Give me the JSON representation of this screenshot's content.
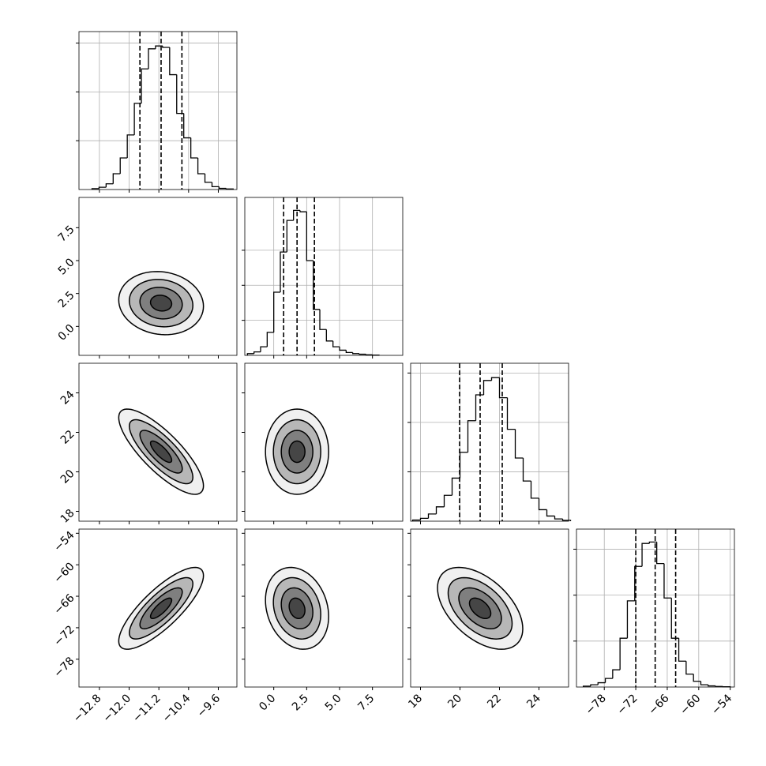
{
  "chart_data": {
    "type": "corner",
    "color": "#000000",
    "grid": true,
    "params": [
      {
        "lim": [
          -13.35,
          -9.1
        ],
        "ticks": [
          {
            "value": -12.8,
            "label": "−12.8"
          },
          {
            "value": -12.0,
            "label": "−12.0"
          },
          {
            "value": -11.2,
            "label": "−11.2"
          },
          {
            "value": -10.4,
            "label": "−10.4"
          },
          {
            "value": -9.6,
            "label": "−9.6"
          }
        ],
        "bins": [
          -13.0,
          -12.81,
          -12.62,
          -12.43,
          -12.24,
          -12.05,
          -11.86,
          -11.67,
          -11.48,
          -11.29,
          -11.1,
          -10.91,
          -10.72,
          -10.53,
          -10.34,
          -10.15,
          -9.96,
          -9.77,
          -9.58,
          -9.39,
          -9.2
        ],
        "counts": [
          3,
          8,
          20,
          55,
          110,
          190,
          300,
          420,
          490,
          500,
          495,
          400,
          265,
          180,
          110,
          55,
          25,
          10,
          4,
          2
        ],
        "hist_ylim": [
          0,
          550
        ],
        "hist_yticks": [
          170,
          340,
          510
        ],
        "quantiles": [
          -11.71,
          -11.14,
          -10.58
        ]
      },
      {
        "lim": [
          -2.2,
          9.8
        ],
        "ticks": [
          {
            "value": 0,
            "label": "0.0"
          },
          2.5,
          {
            "value": 5,
            "label": "5.0"
          },
          7.5
        ],
        "bins": [
          -2.0,
          -1.5,
          -1.0,
          -0.5,
          0.0,
          0.5,
          1.0,
          1.5,
          2.0,
          2.5,
          3.0,
          3.5,
          4.0,
          4.5,
          5.0,
          5.5,
          6.0,
          6.5,
          7.0,
          7.5,
          8.0
        ],
        "counts": [
          6,
          12,
          30,
          80,
          220,
          360,
          470,
          505,
          500,
          330,
          160,
          90,
          50,
          30,
          18,
          10,
          6,
          4,
          2,
          1
        ],
        "hist_ylim": [
          0,
          550
        ],
        "hist_yticks": [
          122,
          244,
          366
        ],
        "quantiles": [
          0.75,
          1.77,
          3.09
        ]
      },
      {
        "lim": [
          17.5,
          25.5
        ],
        "ticks": [
          18,
          20,
          22,
          24
        ],
        "bins": [
          17.6,
          18.0,
          18.4,
          18.8,
          19.2,
          19.6,
          20.0,
          20.4,
          20.8,
          21.2,
          21.6,
          22.0,
          22.4,
          22.8,
          23.2,
          23.6,
          24.0,
          24.4,
          24.8,
          25.2,
          25.6
        ],
        "counts": [
          4,
          10,
          25,
          50,
          90,
          150,
          240,
          350,
          440,
          490,
          500,
          430,
          320,
          220,
          140,
          80,
          40,
          18,
          8,
          3
        ],
        "hist_ylim": [
          0,
          550
        ],
        "hist_yticks": [
          172,
          344,
          516
        ],
        "quantiles": [
          19.98,
          21.02,
          22.14
        ]
      },
      {
        "lim": [
          -83.3,
          -53.2
        ],
        "ticks": [
          {
            "value": -78,
            "label": "−78"
          },
          {
            "value": -72,
            "label": "−72"
          },
          {
            "value": -66,
            "label": "−66"
          },
          {
            "value": -60,
            "label": "−60"
          },
          {
            "value": -54,
            "label": "−54"
          }
        ],
        "bins": [
          -82.0,
          -80.6,
          -79.2,
          -77.8,
          -76.4,
          -75.0,
          -73.6,
          -72.2,
          -70.8,
          -69.4,
          -68.0,
          -66.6,
          -65.2,
          -63.8,
          -62.4,
          -61.0,
          -59.6,
          -58.2,
          -56.8,
          -55.4,
          -54.0
        ],
        "counts": [
          3,
          8,
          15,
          30,
          60,
          170,
          300,
          420,
          500,
          505,
          430,
          310,
          170,
          90,
          45,
          20,
          8,
          4,
          2,
          1
        ],
        "hist_ylim": [
          0,
          550
        ],
        "hist_yticks": [
          160,
          320,
          480
        ],
        "quantiles": [
          -72.0,
          -68.3,
          -64.4
        ]
      }
    ],
    "panels2d": [
      [
        {
          "center": [
            -11.14,
            1.77
          ],
          "sigma": [
            0.57,
            1.2
          ],
          "rho": -0.1,
          "levels": [
            0.5,
            1,
            1.5,
            2
          ]
        }
      ],
      [
        {
          "center": [
            -11.14,
            21.02
          ],
          "sigma": [
            0.57,
            1.08
          ],
          "rho": -0.8,
          "levels": [
            0.5,
            1,
            1.5,
            2
          ]
        },
        {
          "center": [
            1.77,
            21.02
          ],
          "sigma": [
            1.2,
            1.08
          ],
          "rho": 0.0,
          "levels": [
            0.5,
            1,
            1.5,
            2
          ]
        }
      ],
      [
        {
          "center": [
            -11.14,
            -68.3
          ],
          "sigma": [
            0.57,
            3.9
          ],
          "rho": 0.8,
          "levels": [
            0.5,
            1,
            1.5,
            2
          ]
        },
        {
          "center": [
            1.77,
            -68.3
          ],
          "sigma": [
            1.2,
            3.9
          ],
          "rho": -0.2,
          "levels": [
            0.5,
            1,
            1.5,
            2
          ]
        },
        {
          "center": [
            21.02,
            -68.3
          ],
          "sigma": [
            1.08,
            3.9
          ],
          "rho": -0.5,
          "levels": [
            0.5,
            1,
            1.5,
            2
          ]
        }
      ]
    ]
  }
}
